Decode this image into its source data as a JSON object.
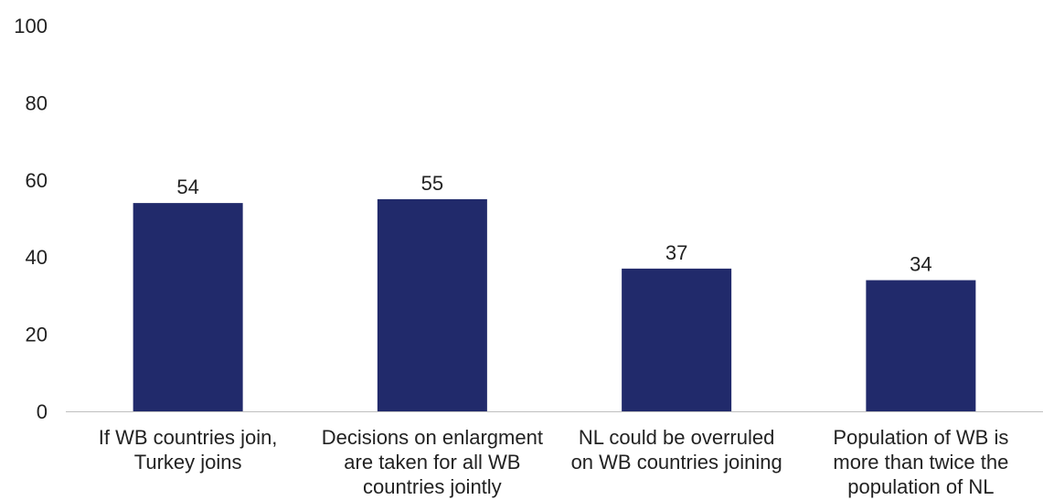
{
  "chart_data": {
    "type": "bar",
    "categories": [
      [
        "If WB countries join,",
        "Turkey joins"
      ],
      [
        "Decisions on enlargment",
        "are taken for all WB",
        "countries jointly"
      ],
      [
        "NL could be overruled",
        "on WB countries joining"
      ],
      [
        "Population of WB is",
        "more than twice the",
        "population of NL"
      ]
    ],
    "values": [
      54,
      55,
      37,
      34
    ],
    "data_labels": [
      "54",
      "55",
      "37",
      "34"
    ],
    "ylim": [
      0,
      100
    ],
    "yticks": [
      0,
      20,
      40,
      60,
      80,
      100
    ],
    "grid": false,
    "legend": "none",
    "bar_color": "#212a6b",
    "axis_color": "#bfbfbf"
  }
}
